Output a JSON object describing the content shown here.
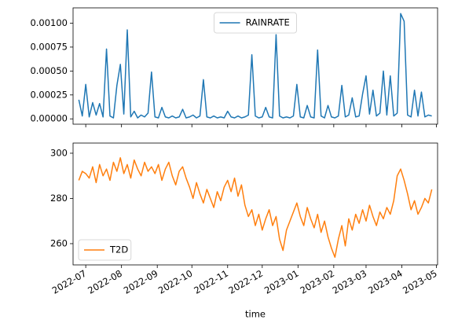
{
  "chart_data": [
    {
      "type": "line",
      "series": [
        {
          "name": "RAINRATE",
          "color": "#1f77b4",
          "x": [
            19168,
            19171,
            19174,
            19177,
            19180,
            19183,
            19186,
            19189,
            19192,
            19195,
            19198,
            19201,
            19204,
            19207,
            19210,
            19213,
            19216,
            19219,
            19222,
            19225,
            19228,
            19231,
            19234,
            19237,
            19240,
            19243,
            19246,
            19249,
            19252,
            19255,
            19258,
            19261,
            19264,
            19267,
            19270,
            19273,
            19276,
            19279,
            19282,
            19285,
            19288,
            19291,
            19294,
            19297,
            19300,
            19303,
            19306,
            19309,
            19312,
            19315,
            19318,
            19321,
            19324,
            19327,
            19330,
            19333,
            19336,
            19339,
            19342,
            19345,
            19348,
            19351,
            19354,
            19357,
            19360,
            19363,
            19366,
            19369,
            19372,
            19375,
            19378,
            19381,
            19384,
            19387,
            19390,
            19393,
            19396,
            19399,
            19402,
            19405,
            19408,
            19411,
            19414,
            19417,
            19420,
            19423,
            19426,
            19429,
            19432,
            19435,
            19438,
            19441,
            19444,
            19447,
            19450,
            19453,
            19456,
            19459,
            19462,
            19465,
            19468,
            19471,
            19474
          ],
          "values": [
            0.0002,
            3e-05,
            0.00036,
            2e-05,
            0.00017,
            4e-05,
            0.00016,
            2e-05,
            0.00073,
            3e-05,
            1e-05,
            0.00035,
            0.00057,
            5e-05,
            0.00093,
            2e-05,
            8e-05,
            1e-05,
            4e-05,
            2e-05,
            6e-05,
            0.00049,
            2e-05,
            1e-05,
            0.00012,
            2e-05,
            1e-05,
            3e-05,
            1e-05,
            2e-05,
            0.0001,
            1e-05,
            2e-05,
            4e-05,
            1e-05,
            3e-05,
            0.00041,
            2e-05,
            1e-05,
            3e-05,
            1e-05,
            2e-05,
            1e-05,
            8e-05,
            2e-05,
            1e-05,
            3e-05,
            1e-05,
            2e-05,
            4e-05,
            0.00067,
            3e-05,
            1e-05,
            2e-05,
            0.00012,
            2e-05,
            1e-05,
            0.00088,
            3e-05,
            1e-05,
            2e-05,
            1e-05,
            3e-05,
            0.00036,
            2e-05,
            1e-05,
            0.00014,
            2e-05,
            1e-05,
            0.00072,
            3e-05,
            1e-05,
            0.00014,
            2e-05,
            1e-05,
            3e-05,
            0.00035,
            2e-05,
            4e-05,
            0.00022,
            2e-05,
            3e-05,
            0.00026,
            0.00045,
            5e-05,
            0.0003,
            3e-05,
            6e-05,
            0.0005,
            4e-05,
            0.00045,
            3e-05,
            6e-05,
            0.0011,
            0.00102,
            4e-05,
            2e-05,
            0.0003,
            3e-05,
            0.00028,
            2e-05,
            4e-05,
            3e-05
          ]
        }
      ],
      "xlim": [
        19163,
        19479
      ],
      "xticks": [
        19174,
        19205,
        19236,
        19266,
        19297,
        19327,
        19358,
        19389,
        19417,
        19448,
        19478
      ],
      "ylim": [
        -5.57e-05,
        0.00116
      ],
      "yticks": [
        {
          "value": 0,
          "label": "0.00000"
        },
        {
          "value": 0.00025,
          "label": "0.00025"
        },
        {
          "value": 0.0005,
          "label": "0.00050"
        },
        {
          "value": 0.00075,
          "label": "0.00075"
        },
        {
          "value": 0.001,
          "label": "0.00100"
        }
      ],
      "legend": "upper center"
    },
    {
      "type": "line",
      "xlabel": "time",
      "series": [
        {
          "name": "T2D",
          "color": "#ff7f0e",
          "x": [
            19168,
            19171,
            19174,
            19177,
            19180,
            19183,
            19186,
            19189,
            19192,
            19195,
            19198,
            19201,
            19204,
            19207,
            19210,
            19213,
            19216,
            19219,
            19222,
            19225,
            19228,
            19231,
            19234,
            19237,
            19240,
            19243,
            19246,
            19249,
            19252,
            19255,
            19258,
            19261,
            19264,
            19267,
            19270,
            19273,
            19276,
            19279,
            19282,
            19285,
            19288,
            19291,
            19294,
            19297,
            19300,
            19303,
            19306,
            19309,
            19312,
            19315,
            19318,
            19321,
            19324,
            19327,
            19330,
            19333,
            19336,
            19339,
            19342,
            19345,
            19348,
            19351,
            19354,
            19357,
            19360,
            19363,
            19366,
            19369,
            19372,
            19375,
            19378,
            19381,
            19384,
            19387,
            19390,
            19393,
            19396,
            19399,
            19402,
            19405,
            19408,
            19411,
            19414,
            19417,
            19420,
            19423,
            19426,
            19429,
            19432,
            19435,
            19438,
            19441,
            19444,
            19447,
            19450,
            19453,
            19456,
            19459,
            19462,
            19465,
            19468,
            19471,
            19474
          ],
          "values": [
            288,
            292,
            291,
            289,
            294,
            287,
            295,
            290,
            293,
            288,
            296,
            292,
            298,
            291,
            295,
            289,
            297,
            293,
            290,
            296,
            292,
            294,
            291,
            295,
            288,
            293,
            296,
            290,
            286,
            292,
            294,
            289,
            285,
            280,
            287,
            282,
            278,
            284,
            280,
            276,
            283,
            279,
            285,
            288,
            283,
            289,
            281,
            286,
            277,
            272,
            275,
            268,
            273,
            266,
            271,
            275,
            268,
            272,
            262,
            257,
            266,
            270,
            274,
            278,
            272,
            268,
            276,
            271,
            267,
            273,
            265,
            270,
            263,
            258,
            254,
            262,
            268,
            259,
            271,
            266,
            273,
            269,
            275,
            270,
            277,
            272,
            268,
            274,
            271,
            276,
            273,
            279,
            290,
            293,
            288,
            282,
            275,
            279,
            273,
            276,
            280,
            278,
            284
          ]
        }
      ],
      "xlim": [
        19163,
        19479
      ],
      "xticks": [
        {
          "value": 19174,
          "label": "2022-07"
        },
        {
          "value": 19205,
          "label": "2022-08"
        },
        {
          "value": 19236,
          "label": "2022-09"
        },
        {
          "value": 19266,
          "label": "2022-10"
        },
        {
          "value": 19297,
          "label": "2022-11"
        },
        {
          "value": 19327,
          "label": "2022-12"
        },
        {
          "value": 19358,
          "label": "2023-01"
        },
        {
          "value": 19389,
          "label": "2023-02"
        },
        {
          "value": 19417,
          "label": "2023-03"
        },
        {
          "value": 19448,
          "label": "2023-04"
        },
        {
          "value": 19478,
          "label": "2023-05"
        }
      ],
      "ylim": [
        250.6,
        304.5
      ],
      "yticks": [
        260,
        280,
        300
      ],
      "legend": "lower left"
    }
  ]
}
